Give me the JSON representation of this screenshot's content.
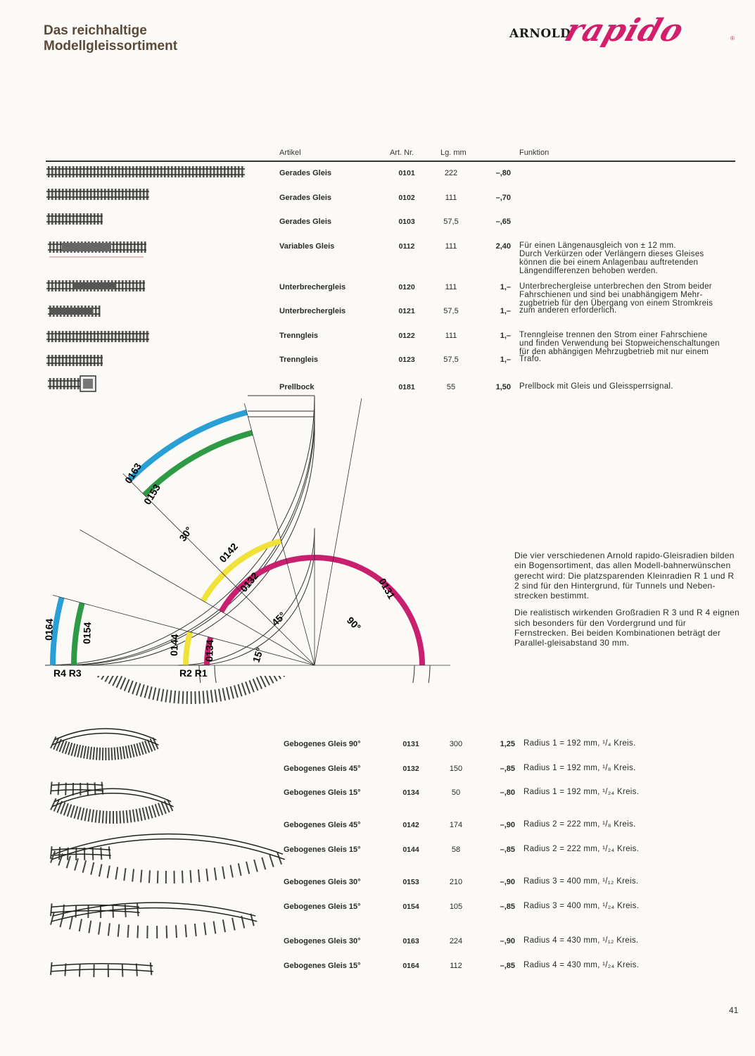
{
  "header": {
    "title_line1": "Das reichhaltige",
    "title_line2": "Modellgleissortiment",
    "brand_arnold": "ARNOLD",
    "brand_rapido": "rapido",
    "brand_reg": "®"
  },
  "table": {
    "col_artikel": "Artikel",
    "col_artnr": "Art. Nr.",
    "col_lg": "Lg. mm",
    "col_funktion": "Funktion"
  },
  "straight": [
    {
      "name": "Gerades Gleis",
      "nr": "0101",
      "lg": "222",
      "price": "–,80",
      "func": ""
    },
    {
      "name": "Gerades Gleis",
      "nr": "0102",
      "lg": "111",
      "price": "–,70",
      "func": ""
    },
    {
      "name": "Gerades Gleis",
      "nr": "0103",
      "lg": "57,5",
      "price": "–,65",
      "func": ""
    },
    {
      "name": "Variables Gleis",
      "nr": "0112",
      "lg": "111",
      "price": "2,40",
      "func": "Für einen Längenausgleich von ± 12 mm.\nDurch Verkürzen oder Verlängern dieses Gleises\nkönnen die bei einem Anlagenbau auftretenden\nLängendifferenzen behoben werden."
    },
    {
      "name": "Unterbrechergleis",
      "nr": "0120",
      "lg": "111",
      "price": "1,–",
      "func": "Unterbrechergleise unterbrechen den Strom beider\nFahrschienen und sind bei unabhängigem Mehr-\nzugbetrieb für den Übergang von einem Stromkreis"
    },
    {
      "name": "Unterbrechergleis",
      "nr": "0121",
      "lg": "57,5",
      "price": "1,–",
      "func": "zum anderen erforderlich."
    },
    {
      "name": "Trenngleis",
      "nr": "0122",
      "lg": "111",
      "price": "1,–",
      "func": "Trenngleise trennen den Strom einer Fahrschiene\nund finden Verwendung bei Stopweichenschaltungen\nfür den abhängigen Mehrzugbetrieb mit nur einem"
    },
    {
      "name": "Trenngleis",
      "nr": "0123",
      "lg": "57,5",
      "price": "1,–",
      "func": "Trafo."
    },
    {
      "name": "Prellbock",
      "nr": "0181",
      "lg": "55",
      "price": "1,50",
      "func": "Prellbock mit Gleis und Gleissperrsignal."
    }
  ],
  "diagram": {
    "labels": {
      "a0163": "0163",
      "a0153": "0153",
      "a0142": "0142",
      "a0132": "0132",
      "a0131": "0131",
      "a0164": "0164",
      "a0154": "0154",
      "a0144": "0144",
      "a0134": "0134",
      "deg30": "30°",
      "deg45": "45°",
      "deg90": "90°",
      "deg15": "15°",
      "r4r3": "R4 R3",
      "r2r1": "R2 R1"
    },
    "colors": {
      "r4": "#2a9fd6",
      "r3": "#2e9a45",
      "r2": "#f1e23a",
      "r1": "#c8206e"
    }
  },
  "description": {
    "p1": "Die vier verschiedenen Arnold rapido-Gleisradien bilden ein Bogensortiment, das allen Modell-bahnerwünschen gerecht wird: Die platzsparenden Kleinradien R 1 und R 2 sind für den Hintergrund, für Tunnels und Neben-strecken bestimmt.",
    "p2": "Die realistisch wirkenden Großradien R 3 und R 4 eignen sich besonders für den Vordergrund und für Fernstrecken. Bei beiden Kombinationen beträgt der Parallel-gleisabstand 30 mm."
  },
  "curved": [
    {
      "name": "Gebogenes Gleis 90°",
      "nr": "0131",
      "lg": "300",
      "price": "1,25",
      "func": "Radius 1 = 192 mm, ¹/₄ Kreis."
    },
    {
      "name": "Gebogenes Gleis 45°",
      "nr": "0132",
      "lg": "150",
      "price": "–,85",
      "func": "Radius 1 = 192 mm, ¹/₈ Kreis."
    },
    {
      "name": "Gebogenes Gleis 15°",
      "nr": "0134",
      "lg": "50",
      "price": "–,80",
      "func": "Radius 1 = 192 mm, ¹/₂₄ Kreis."
    },
    {
      "name": "Gebogenes Gleis 45°",
      "nr": "0142",
      "lg": "174",
      "price": "–,90",
      "func": "Radius 2 = 222 mm, ¹/₈ Kreis."
    },
    {
      "name": "Gebogenes Gleis 15°",
      "nr": "0144",
      "lg": "58",
      "price": "–,85",
      "func": "Radius 2 = 222 mm, ¹/₂₄ Kreis."
    },
    {
      "name": "Gebogenes Gleis 30°",
      "nr": "0153",
      "lg": "210",
      "price": "–,90",
      "func": "Radius 3 = 400 mm, ¹/₁₂ Kreis."
    },
    {
      "name": "Gebogenes Gleis 15°",
      "nr": "0154",
      "lg": "105",
      "price": "–,85",
      "func": "Radius 3 = 400 mm, ¹/₂₄ Kreis."
    },
    {
      "name": "Gebogenes Gleis 30°",
      "nr": "0163",
      "lg": "224",
      "price": "–,90",
      "func": "Radius 4 = 430 mm, ¹/₁₂ Kreis."
    },
    {
      "name": "Gebogenes Gleis 15°",
      "nr": "0164",
      "lg": "112",
      "price": "–,85",
      "func": "Radius 4 = 430 mm, ¹/₂₄ Kreis."
    }
  ],
  "page_number": "41"
}
